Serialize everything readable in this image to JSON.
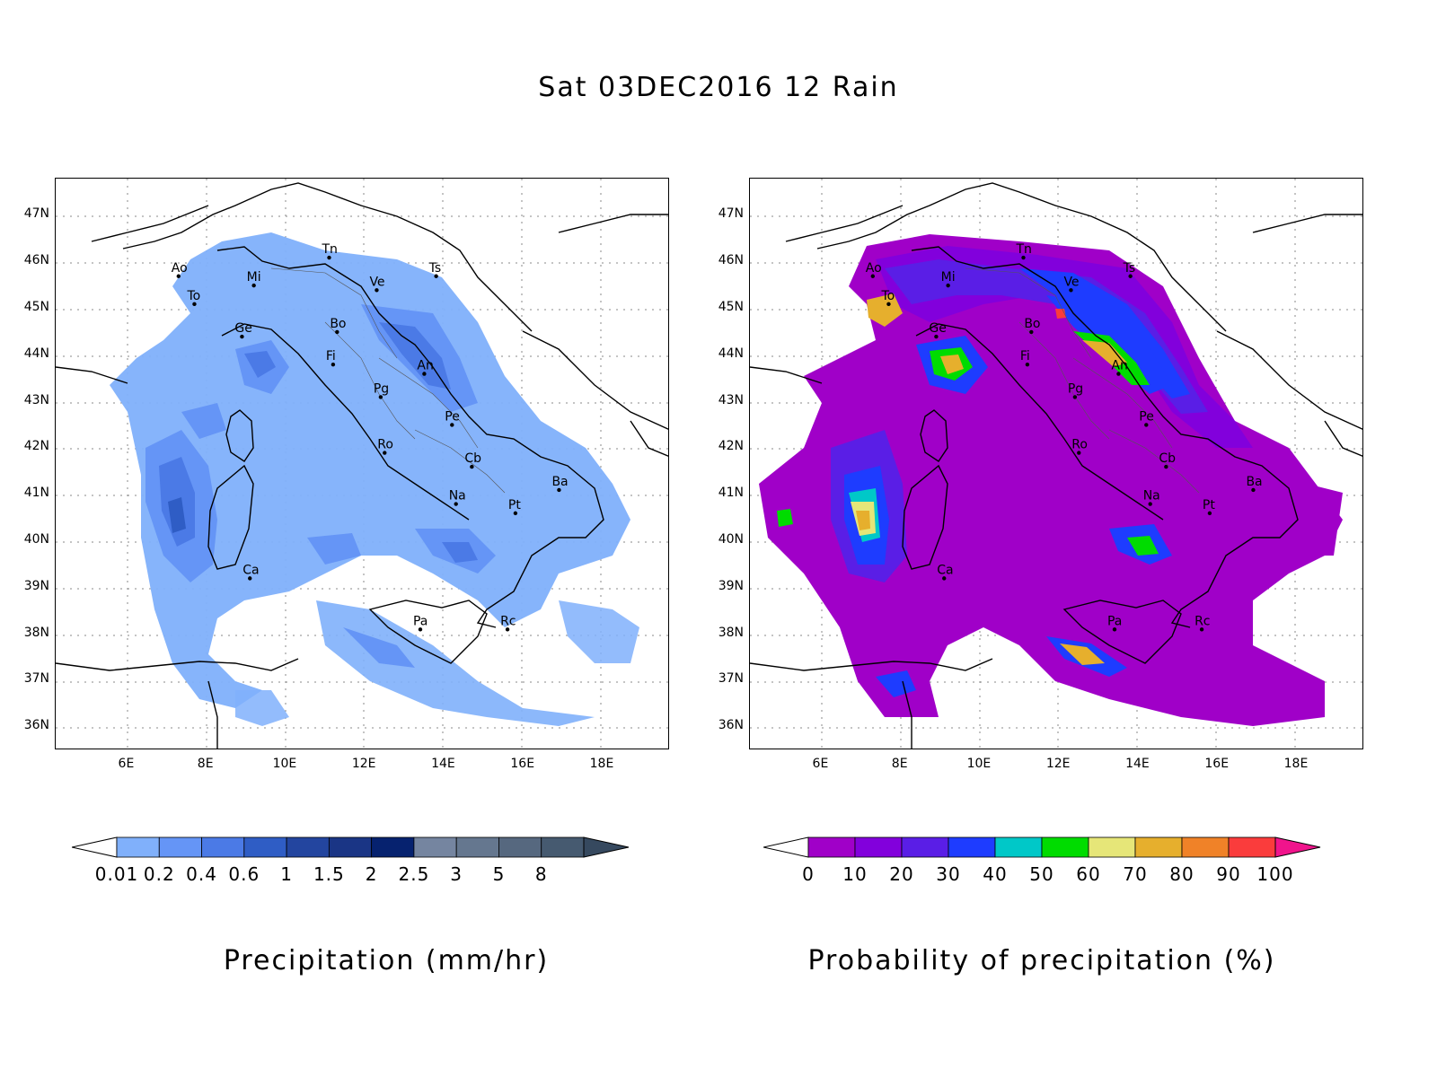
{
  "title": "Sat 03DEC2016 12 Rain",
  "map": {
    "lon_range": [
      4.2,
      19.7
    ],
    "lat_range": [
      35.5,
      47.8
    ],
    "lat_ticks": [
      "36N",
      "37N",
      "38N",
      "39N",
      "40N",
      "41N",
      "42N",
      "43N",
      "44N",
      "45N",
      "46N",
      "47N"
    ],
    "lon_ticks": [
      "6E",
      "8E",
      "10E",
      "12E",
      "14E",
      "16E",
      "18E"
    ],
    "cities": [
      {
        "code": "Ao",
        "lon": 7.3,
        "lat": 45.7
      },
      {
        "code": "To",
        "lon": 7.7,
        "lat": 45.1
      },
      {
        "code": "Mi",
        "lon": 9.2,
        "lat": 45.5
      },
      {
        "code": "Tn",
        "lon": 11.1,
        "lat": 46.1
      },
      {
        "code": "Ve",
        "lon": 12.3,
        "lat": 45.4
      },
      {
        "code": "Ts",
        "lon": 13.8,
        "lat": 45.7
      },
      {
        "code": "Ge",
        "lon": 8.9,
        "lat": 44.4
      },
      {
        "code": "Bo",
        "lon": 11.3,
        "lat": 44.5
      },
      {
        "code": "Fi",
        "lon": 11.2,
        "lat": 43.8
      },
      {
        "code": "An",
        "lon": 13.5,
        "lat": 43.6
      },
      {
        "code": "Pg",
        "lon": 12.4,
        "lat": 43.1
      },
      {
        "code": "Pe",
        "lon": 14.2,
        "lat": 42.5
      },
      {
        "code": "Ro",
        "lon": 12.5,
        "lat": 41.9
      },
      {
        "code": "Cb",
        "lon": 14.7,
        "lat": 41.6
      },
      {
        "code": "Ba",
        "lon": 16.9,
        "lat": 41.1
      },
      {
        "code": "Na",
        "lon": 14.3,
        "lat": 40.8
      },
      {
        "code": "Pt",
        "lon": 15.8,
        "lat": 40.6
      },
      {
        "code": "Ca",
        "lon": 9.1,
        "lat": 39.2
      },
      {
        "code": "Pa",
        "lon": 13.4,
        "lat": 38.1
      },
      {
        "code": "Rc",
        "lon": 15.6,
        "lat": 38.1
      }
    ]
  },
  "colorbars": {
    "precip": {
      "title": "Precipitation (mm/hr)",
      "labels": [
        "0.01",
        "0.2",
        "0.4",
        "0.6",
        "1",
        "1.5",
        "2",
        "2.5",
        "3",
        "5",
        "8"
      ],
      "colors": [
        "#80b0fb",
        "#6595f6",
        "#4b7ae6",
        "#2f5dc5",
        "#23459f",
        "#1a3585",
        "#06226f",
        "#7585a0",
        "#65778f",
        "#56687f",
        "#465a70"
      ],
      "under_color": "#ffffff",
      "over_color": "#36495f"
    },
    "prob": {
      "title": "Probability of precipitation (%)",
      "labels": [
        "0",
        "10",
        "20",
        "30",
        "40",
        "50",
        "60",
        "70",
        "80",
        "90",
        "100"
      ],
      "colors": [
        "#a000c8",
        "#8200dc",
        "#5a1ee6",
        "#1e3cff",
        "#00c8c8",
        "#00dc00",
        "#e6e678",
        "#e6af2d",
        "#f08228",
        "#fa3c3c"
      ],
      "under_color": "#ffffff",
      "over_color": "#f0148c"
    }
  }
}
